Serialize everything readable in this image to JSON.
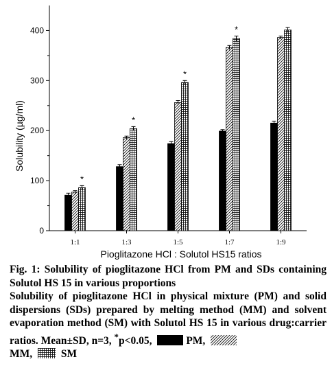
{
  "chart_data": {
    "type": "bar",
    "xlabel": "Pioglitazone HCl : Solutol HS15 ratios",
    "ylabel": "Solubility (µg/ml)",
    "categories": [
      "1:1",
      "1:3",
      "1:5",
      "1:7",
      "1:9"
    ],
    "ylim": [
      0,
      450
    ],
    "yticks": [
      0,
      100,
      200,
      300,
      400
    ],
    "series": [
      {
        "name": "PM",
        "pattern": "solid",
        "values": [
          71,
          128,
          174,
          199,
          215
        ],
        "errors": [
          4,
          4,
          4,
          3,
          4
        ]
      },
      {
        "name": "MM",
        "pattern": "diagonal-hatch",
        "values": [
          77,
          186,
          256,
          366,
          386
        ],
        "errors": [
          3,
          3,
          4,
          4,
          3
        ]
      },
      {
        "name": "SM",
        "pattern": "grid-hatch",
        "values": [
          86,
          204,
          296,
          384,
          401
        ],
        "errors": [
          4,
          4,
          4,
          5,
          5
        ]
      }
    ],
    "annotations": [
      {
        "category": "1:1",
        "text": "*"
      },
      {
        "category": "1:3",
        "text": "*"
      },
      {
        "category": "1:5",
        "text": "*"
      },
      {
        "category": "1:7",
        "text": "*"
      }
    ],
    "grid": false,
    "legend": "none"
  },
  "caption": {
    "title": "Fig. 1: Solubility of pioglitazone HCl from PM and SDs containing Solutol HS 15 in various proportions",
    "body": "Solubility of pioglitazone HCl in physical mixture (PM) and solid dispersions (SDs) prepared by melting method (MM) and solvent evaporation method (SM) with Solutol HS 15 in various drug:carrier ratios. Mean±SD, n=3, ",
    "sig_mark": "*",
    "sig_text": "p<0.05,",
    "pm_label": "PM,",
    "mm_label": "MM,",
    "sm_label": "SM"
  },
  "colors": {
    "bar_fill": "#000000",
    "background": "#ffffff"
  }
}
